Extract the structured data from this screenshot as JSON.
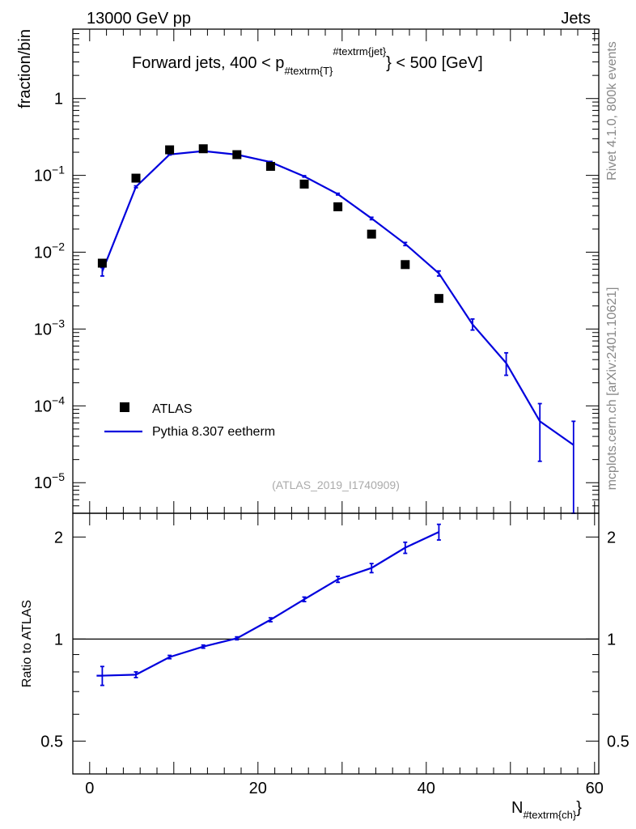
{
  "header": {
    "left_label": "13000 GeV pp",
    "right_label": "Jets"
  },
  "side_labels": {
    "rivet": "Rivet 4.1.0,  800k events",
    "mcplots": "mcplots.cern.ch [arXiv:2401.10621]"
  },
  "chart_data": [
    {
      "type": "scatter",
      "panel": "main",
      "title_main": "Forward jets, 400 < p",
      "title_sub": "#textrm{T}",
      "title_sup": "#textrm{jet}",
      "title_end": "} < 500 [GeV]",
      "ylabel": "fraction/bin",
      "yscale": "log",
      "ylim": [
        4e-06,
        8
      ],
      "xlim": [
        -2,
        60.5
      ],
      "y_tick_labels": [
        {
          "value": 1,
          "mant": "1",
          "exp": ""
        },
        {
          "value": 0.1,
          "mant": "10",
          "exp": "−1"
        },
        {
          "value": 0.01,
          "mant": "10",
          "exp": "−2"
        },
        {
          "value": 0.001,
          "mant": "10",
          "exp": "−3"
        },
        {
          "value": 0.0001,
          "mant": "10",
          "exp": "−4"
        },
        {
          "value": 1e-05,
          "mant": "10",
          "exp": "−5"
        }
      ],
      "legend": {
        "position": "lower-left",
        "entries": [
          {
            "label": "ATLAS",
            "marker": "square",
            "color": "#000000"
          },
          {
            "label": "Pythia 8.307 eetherm",
            "marker": "line",
            "color": "#0000dd"
          }
        ]
      },
      "watermark": "(ATLAS_2019_I1740909)",
      "series": [
        {
          "name": "ATLAS",
          "color": "#000000",
          "points": [
            {
              "x": 1.5,
              "y": 0.0072
            },
            {
              "x": 5.5,
              "y": 0.092
            },
            {
              "x": 9.5,
              "y": 0.215
            },
            {
              "x": 13.5,
              "y": 0.222
            },
            {
              "x": 17.5,
              "y": 0.186
            },
            {
              "x": 21.5,
              "y": 0.131
            },
            {
              "x": 25.5,
              "y": 0.077
            },
            {
              "x": 29.5,
              "y": 0.039
            },
            {
              "x": 33.5,
              "y": 0.0172
            },
            {
              "x": 37.5,
              "y": 0.0069
            },
            {
              "x": 41.5,
              "y": 0.0025
            }
          ]
        },
        {
          "name": "Pythia 8.307 eetherm",
          "color": "#0000dd",
          "points": [
            {
              "x": 1.5,
              "y": 0.0056,
              "ylo": 0.0049,
              "yhi": 0.0063
            },
            {
              "x": 5.5,
              "y": 0.071,
              "ylo": 0.069,
              "yhi": 0.073
            },
            {
              "x": 9.5,
              "y": 0.187,
              "ylo": 0.184,
              "yhi": 0.19
            },
            {
              "x": 13.5,
              "y": 0.207,
              "ylo": 0.204,
              "yhi": 0.21
            },
            {
              "x": 17.5,
              "y": 0.186,
              "ylo": 0.183,
              "yhi": 0.189
            },
            {
              "x": 21.5,
              "y": 0.149,
              "ylo": 0.146,
              "yhi": 0.152
            },
            {
              "x": 25.5,
              "y": 0.097,
              "ylo": 0.095,
              "yhi": 0.099
            },
            {
              "x": 29.5,
              "y": 0.057,
              "ylo": 0.0555,
              "yhi": 0.0585
            },
            {
              "x": 33.5,
              "y": 0.0275,
              "ylo": 0.0265,
              "yhi": 0.0285
            },
            {
              "x": 37.5,
              "y": 0.0128,
              "ylo": 0.0122,
              "yhi": 0.0134
            },
            {
              "x": 41.5,
              "y": 0.0053,
              "ylo": 0.0049,
              "yhi": 0.0057
            },
            {
              "x": 45.5,
              "y": 0.00115,
              "ylo": 0.00097,
              "yhi": 0.00135
            },
            {
              "x": 49.5,
              "y": 0.00036,
              "ylo": 0.00025,
              "yhi": 0.00049
            },
            {
              "x": 53.5,
              "y": 6.3e-05,
              "ylo": 1.9e-05,
              "yhi": 0.000107
            },
            {
              "x": 57.5,
              "y": 3.1e-05,
              "ylo": 3.5e-06,
              "yhi": 6.3e-05
            }
          ]
        }
      ]
    },
    {
      "type": "line",
      "panel": "ratio",
      "ylabel": "Ratio to ATLAS",
      "xlabel_main": "N",
      "xlabel_sub": "#textrm{ch}",
      "xlabel_end": "}",
      "yscale": "log",
      "ylim": [
        0.4,
        2.35
      ],
      "xlim": [
        -2,
        60.5
      ],
      "reference_line": 1,
      "y_ticks": [
        {
          "value": 2,
          "label": "2"
        },
        {
          "value": 1,
          "label": "1"
        },
        {
          "value": 0.5,
          "label": "0.5"
        }
      ],
      "x_ticks": [
        {
          "value": 0,
          "label": "0"
        },
        {
          "value": 20,
          "label": "20"
        },
        {
          "value": 40,
          "label": "40"
        },
        {
          "value": 60,
          "label": "60"
        }
      ],
      "series": [
        {
          "name": "Pythia 8.307 eetherm",
          "color": "#0000dd",
          "points": [
            {
              "x": 1.5,
              "y": 0.78,
              "ylo": 0.73,
              "yhi": 0.83
            },
            {
              "x": 5.5,
              "y": 0.785,
              "ylo": 0.77,
              "yhi": 0.8
            },
            {
              "x": 9.5,
              "y": 0.885,
              "ylo": 0.875,
              "yhi": 0.895
            },
            {
              "x": 13.5,
              "y": 0.95,
              "ylo": 0.94,
              "yhi": 0.96
            },
            {
              "x": 17.5,
              "y": 1.005,
              "ylo": 0.995,
              "yhi": 1.015
            },
            {
              "x": 21.5,
              "y": 1.14,
              "ylo": 1.125,
              "yhi": 1.155
            },
            {
              "x": 25.5,
              "y": 1.31,
              "ylo": 1.29,
              "yhi": 1.33
            },
            {
              "x": 29.5,
              "y": 1.5,
              "ylo": 1.47,
              "yhi": 1.53
            },
            {
              "x": 33.5,
              "y": 1.62,
              "ylo": 1.57,
              "yhi": 1.67
            },
            {
              "x": 37.5,
              "y": 1.86,
              "ylo": 1.79,
              "yhi": 1.93
            },
            {
              "x": 41.5,
              "y": 2.07,
              "ylo": 1.96,
              "yhi": 2.18
            }
          ]
        }
      ]
    }
  ]
}
